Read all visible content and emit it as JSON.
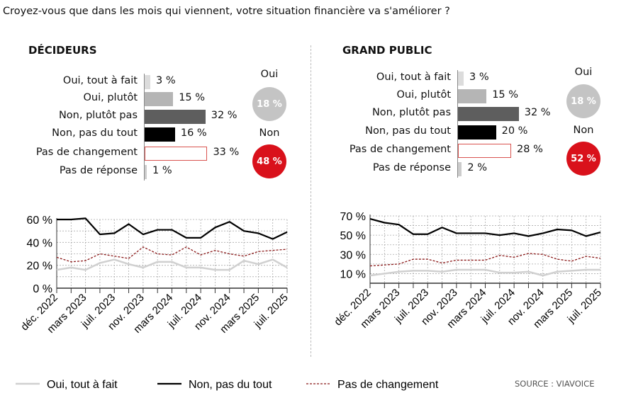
{
  "title": "Croyez-vous que dans les mois qui viennent, votre situation financière va s'améliorer ?",
  "source": "SOURCE : VIAVOICE",
  "colors": {
    "oui_tout": "#dcdcdc",
    "oui_plutot": "#b5b5b5",
    "non_plutot": "#5e5e5e",
    "non_pas": "#000000",
    "changement_border": "#d9534f",
    "reponse": "#cccccc",
    "oui_circle": "#c4c4c4",
    "non_circle": "#d9111b",
    "line_red": "#8b1a1a"
  },
  "panels": [
    {
      "heading": "DÉCIDEURS",
      "rows": [
        {
          "label": "Oui, tout à fait",
          "value": 3,
          "text": "3 %"
        },
        {
          "label": "Oui, plutôt",
          "value": 15,
          "text": "15 %"
        },
        {
          "label": "Non, plutôt pas",
          "value": 32,
          "text": "32 %"
        },
        {
          "label": "Non, pas du tout",
          "value": 16,
          "text": "16 %"
        },
        {
          "label": "Pas de changement",
          "value": 33,
          "text": "33 %"
        },
        {
          "label": "Pas de réponse",
          "value": 1,
          "text": "1 %"
        }
      ],
      "oui_label": "Oui",
      "oui_total": "18 %",
      "non_label": "Non",
      "non_total": "48 %"
    },
    {
      "heading": "GRAND PUBLIC",
      "rows": [
        {
          "label": "Oui, tout à fait",
          "value": 3,
          "text": "3 %"
        },
        {
          "label": "Oui, plutôt",
          "value": 15,
          "text": "15 %"
        },
        {
          "label": "Non, plutôt pas",
          "value": 32,
          "text": "32 %"
        },
        {
          "label": "Non, pas du tout",
          "value": 20,
          "text": "20 %"
        },
        {
          "label": "Pas de changement",
          "value": 28,
          "text": "28 %"
        },
        {
          "label": "Pas de réponse",
          "value": 2,
          "text": "2 %"
        }
      ],
      "oui_label": "Oui",
      "oui_total": "18 %",
      "non_label": "Non",
      "non_total": "52 %"
    }
  ],
  "legend": [
    "Oui, tout à fait",
    "Non, pas du tout",
    "Pas de changement"
  ],
  "chart_data": [
    {
      "type": "line",
      "grid": true,
      "ylim": [
        0,
        60
      ],
      "yticks": [
        "0 %",
        "20 %",
        "40 %",
        "60 %"
      ],
      "ytick_values": [
        0,
        20,
        40,
        60
      ],
      "xtick_labels": [
        "déc. 2022",
        "mars 2023",
        "juil. 2023",
        "nov. 2023",
        "mars 2024",
        "juil. 2024",
        "nov. 2024",
        "mars 2025",
        "juil. 2025"
      ],
      "series": [
        {
          "name": "Oui, tout à fait",
          "values": [
            16,
            18,
            16,
            22,
            25,
            21,
            18,
            23,
            23,
            18,
            18,
            16,
            16,
            24,
            21,
            25,
            18
          ]
        },
        {
          "name": "Non, pas du tout",
          "values": [
            60,
            60,
            61,
            47,
            48,
            56,
            47,
            51,
            51,
            44,
            44,
            53,
            58,
            50,
            48,
            43,
            49
          ]
        },
        {
          "name": "Pas de changement",
          "values": [
            27,
            23,
            24,
            30,
            28,
            26,
            36,
            30,
            29,
            36,
            29,
            33,
            30,
            28,
            32,
            33,
            34
          ]
        }
      ]
    },
    {
      "type": "line",
      "grid": true,
      "ylim": [
        0,
        70
      ],
      "yticks": [
        "10 %",
        "30 %",
        "50 %",
        "70 %"
      ],
      "ytick_values": [
        10,
        30,
        50,
        70
      ],
      "xtick_labels": [
        "déc. 2022",
        "mars 2023",
        "juil. 2023",
        "nov. 2023",
        "mars 2024",
        "juil. 2024",
        "nov. 2024",
        "mars 2025",
        "juil. 2025"
      ],
      "series": [
        {
          "name": "Oui, tout à fait",
          "values": [
            8,
            10,
            12,
            13,
            13,
            12,
            14,
            14,
            14,
            11,
            11,
            12,
            8,
            12,
            13,
            14,
            14
          ]
        },
        {
          "name": "Non, pas du tout",
          "values": [
            67,
            63,
            61,
            51,
            51,
            58,
            52,
            52,
            52,
            50,
            52,
            49,
            52,
            56,
            55,
            49,
            53
          ]
        },
        {
          "name": "Pas de changement",
          "values": [
            18,
            19,
            20,
            25,
            25,
            21,
            24,
            24,
            24,
            29,
            27,
            31,
            30,
            25,
            23,
            28,
            26
          ]
        }
      ]
    }
  ]
}
